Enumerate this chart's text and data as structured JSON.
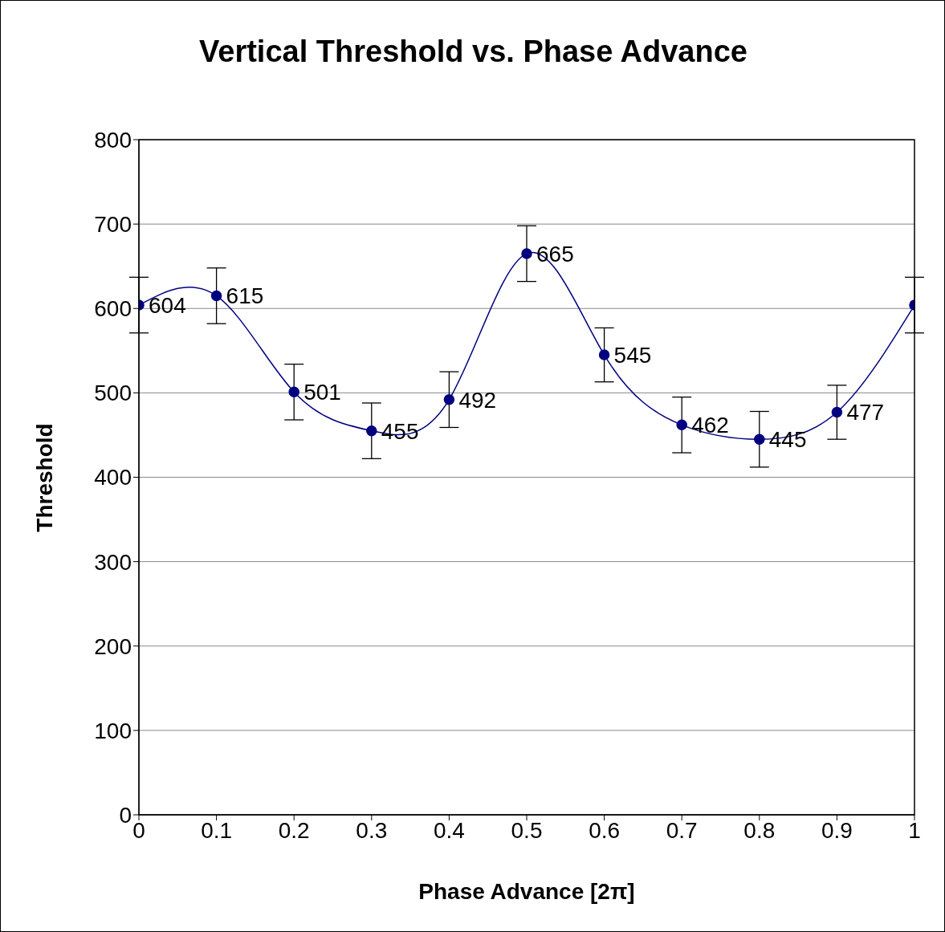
{
  "chart_data": {
    "type": "line",
    "title": "Vertical Threshold vs. Phase Advance",
    "xlabel": "Phase Advance [2π]",
    "ylabel": "Threshold",
    "x": [
      0,
      0.1,
      0.2,
      0.3,
      0.4,
      0.5,
      0.6,
      0.7,
      0.8,
      0.9,
      1
    ],
    "series": [
      {
        "color": "#000080",
        "values": [
          604,
          615,
          501,
          455,
          492,
          665,
          545,
          462,
          445,
          477,
          604
        ],
        "errors": [
          33,
          33,
          33,
          33,
          33,
          33,
          32,
          33,
          33,
          32,
          33
        ],
        "value_labels": [
          "604",
          "615",
          "501",
          "455",
          "492",
          "665",
          "545",
          "462",
          "445",
          "477",
          null
        ]
      }
    ],
    "xlim": [
      0,
      1
    ],
    "xticks": [
      0,
      0.1,
      0.2,
      0.3,
      0.4,
      0.5,
      0.6,
      0.7,
      0.8,
      0.9,
      1
    ],
    "ylim": [
      0,
      800
    ],
    "yticks": [
      0,
      100,
      200,
      300,
      400,
      500,
      600,
      700,
      800
    ],
    "grid": "y",
    "marker": "circle",
    "line_style": "solid"
  }
}
